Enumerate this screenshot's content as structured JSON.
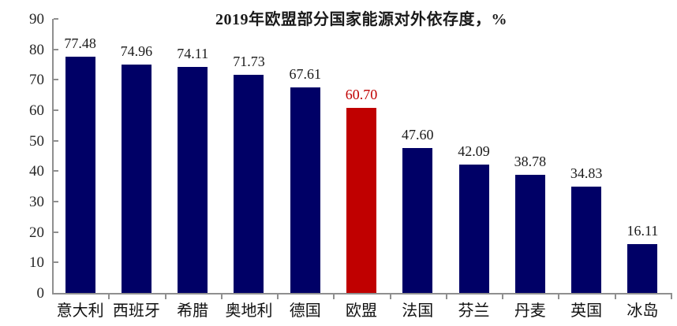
{
  "chart_data": {
    "type": "bar",
    "title": "2019年欧盟部分国家能源对外依存度，%",
    "categories": [
      "意大利",
      "西班牙",
      "希腊",
      "奥地利",
      "德国",
      "欧盟",
      "法国",
      "芬兰",
      "丹麦",
      "英国",
      "冰岛"
    ],
    "values": [
      77.48,
      74.96,
      74.11,
      71.73,
      67.61,
      60.7,
      47.6,
      42.09,
      38.78,
      34.83,
      16.11
    ],
    "value_labels": [
      "77.48",
      "74.96",
      "74.11",
      "71.73",
      "67.61",
      "60.70",
      "47.60",
      "42.09",
      "38.78",
      "34.83",
      "16.11"
    ],
    "highlight_index": 5,
    "xlabel": "",
    "ylabel": "",
    "ylim": [
      0,
      90
    ],
    "yticks": [
      0,
      10,
      20,
      30,
      40,
      50,
      60,
      70,
      80,
      90
    ],
    "grid": false,
    "legend_position": "none",
    "colors": {
      "bar": "#000066",
      "highlight_bar": "#c00000",
      "value_label": "#1a1a1a",
      "highlight_value_label": "#c00000",
      "title": "#1a1a1a",
      "axis": "#8f8f8f",
      "tick_label": "#262626",
      "category_label": "#111111",
      "background": "#ffffff"
    }
  }
}
